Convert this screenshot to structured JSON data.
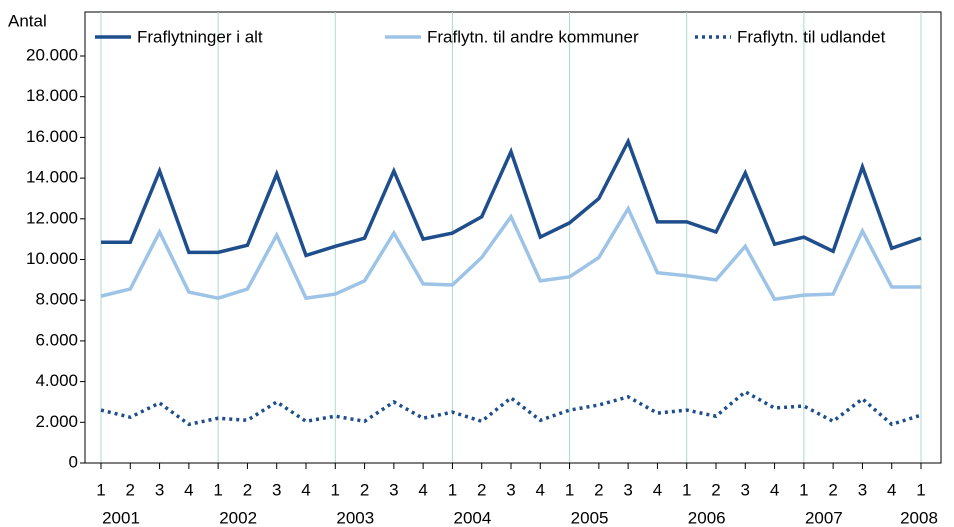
{
  "chart_data": {
    "type": "line",
    "y_label": "Antal",
    "categories": [
      "1",
      "2",
      "3",
      "4",
      "1",
      "2",
      "3",
      "4",
      "1",
      "2",
      "3",
      "4",
      "1",
      "2",
      "3",
      "4",
      "1",
      "2",
      "3",
      "4",
      "1",
      "2",
      "3",
      "4",
      "1",
      "2",
      "3",
      "4",
      "1"
    ],
    "year_labels": [
      "2001",
      "2002",
      "2003",
      "2004",
      "2005",
      "2006",
      "2007",
      "2008"
    ],
    "series": [
      {
        "name": "Fraflytninger i alt",
        "color": "#1f4e8c",
        "dash": "solid",
        "values": [
          10850,
          10850,
          14350,
          10350,
          10350,
          10700,
          14200,
          10200,
          10650,
          11050,
          14350,
          11000,
          11300,
          12100,
          15300,
          11100,
          11800,
          13000,
          15800,
          11850,
          11850,
          11350,
          14250,
          10750,
          11100,
          10400,
          14550,
          10550,
          11050
        ]
      },
      {
        "name": "Fraflytn. til andre kommuner",
        "color": "#9dc3e6",
        "dash": "solid",
        "values": [
          8200,
          8550,
          11350,
          8400,
          8100,
          8550,
          11200,
          8100,
          8300,
          8950,
          11300,
          8800,
          8750,
          10100,
          12100,
          8950,
          9150,
          10100,
          12500,
          9350,
          9200,
          9000,
          10650,
          8050,
          8250,
          8300,
          11400,
          8650,
          8650
        ]
      },
      {
        "name": "Fraflytn. til udlandet",
        "color": "#1f4e8c",
        "dash": "dotted",
        "values": [
          2600,
          2250,
          2950,
          1900,
          2200,
          2100,
          3000,
          2050,
          2300,
          2050,
          3000,
          2200,
          2500,
          2050,
          3200,
          2100,
          2600,
          2850,
          3250,
          2450,
          2600,
          2300,
          3500,
          2700,
          2800,
          2050,
          3150,
          1900,
          2350
        ]
      }
    ],
    "ylim": [
      0,
      20000
    ],
    "yticks": [
      0,
      {
        "value": 2000,
        "label": "2.000"
      },
      {
        "value": 4000,
        "label": "4.000"
      },
      {
        "value": 6000,
        "label": "6.000"
      },
      {
        "value": 8000,
        "label": "8.000"
      },
      {
        "value": 10000,
        "label": "10.000"
      },
      {
        "value": 12000,
        "label": "12.000"
      },
      {
        "value": 14000,
        "label": "14.000"
      },
      {
        "value": 16000,
        "label": "16.000"
      },
      {
        "value": 18000,
        "label": "18.000"
      },
      {
        "value": 20000,
        "label": "20.000"
      }
    ],
    "grid": "x-years",
    "legend": "top"
  }
}
